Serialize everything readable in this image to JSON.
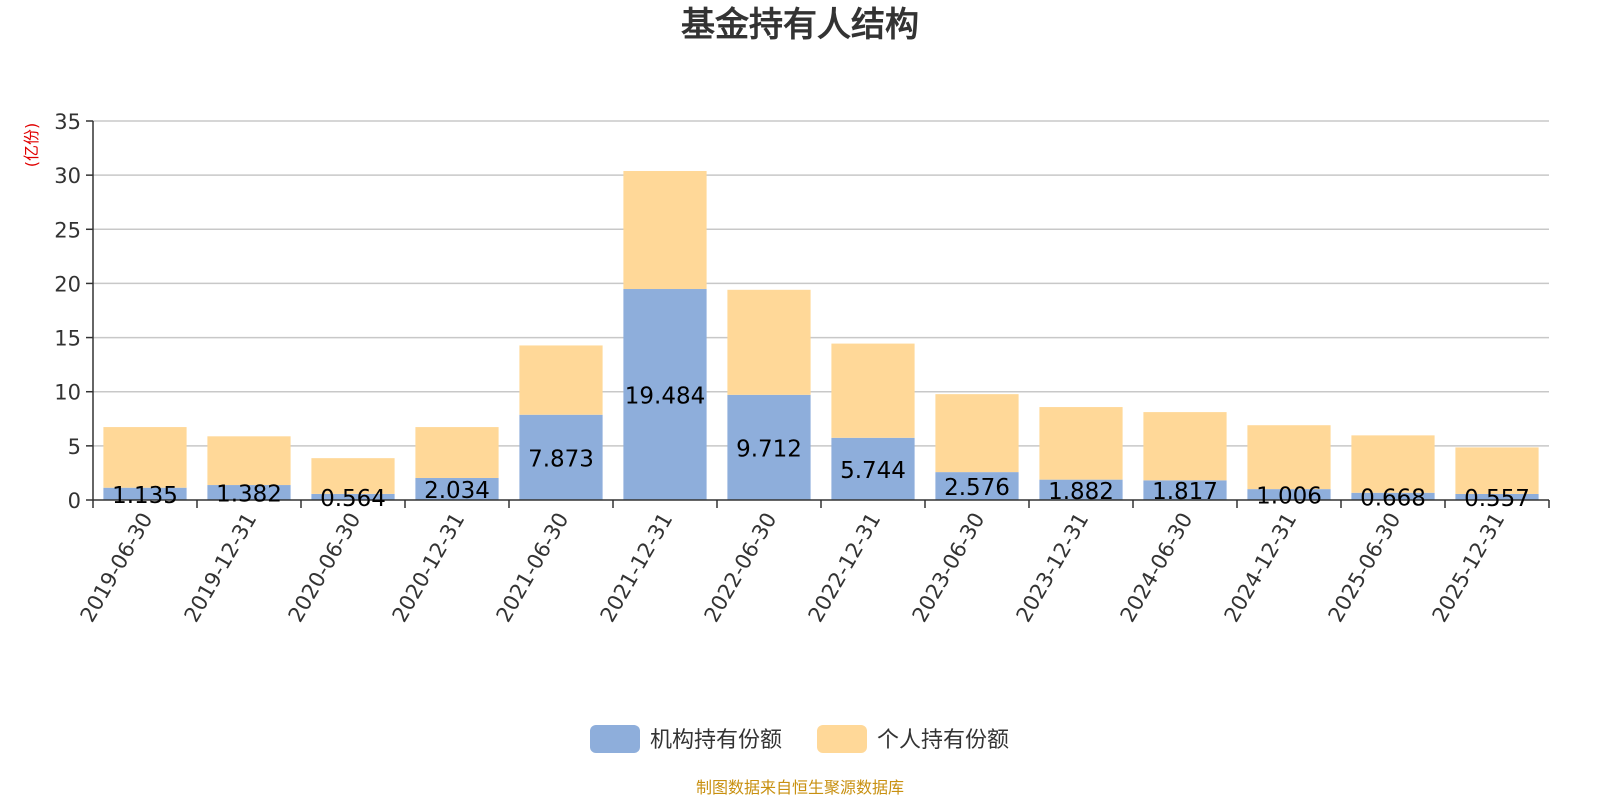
{
  "chart_data": {
    "type": "bar",
    "stacked": true,
    "title": "基金持有人结构",
    "unit_label": "(亿份)",
    "categories": [
      "2019-06-30",
      "2019-12-31",
      "2020-06-30",
      "2020-12-31",
      "2021-06-30",
      "2021-12-31",
      "2022-06-30",
      "2022-12-31",
      "2023-06-30",
      "2023-12-31",
      "2024-06-30",
      "2024-12-31",
      "2025-06-30",
      "2025-12-31"
    ],
    "series": [
      {
        "name": "机构持有份额",
        "color": "#8eaedb",
        "values": [
          1.135,
          1.382,
          0.564,
          2.034,
          7.873,
          19.484,
          9.712,
          5.744,
          2.576,
          1.882,
          1.817,
          1.006,
          0.668,
          0.557
        ]
      },
      {
        "name": "个人持有份额",
        "color": "#ffd898",
        "values": [
          5.6,
          4.5,
          3.3,
          4.7,
          6.4,
          10.9,
          9.7,
          8.7,
          7.2,
          6.7,
          6.3,
          5.9,
          5.3,
          4.3
        ]
      }
    ],
    "yticks": [
      0,
      5,
      10,
      15,
      20,
      25,
      30,
      35
    ],
    "ylim": [
      0,
      35
    ],
    "grid": true,
    "legend_position": "bottom-center",
    "source_note": "制图数据来自恒生聚源数据库"
  }
}
